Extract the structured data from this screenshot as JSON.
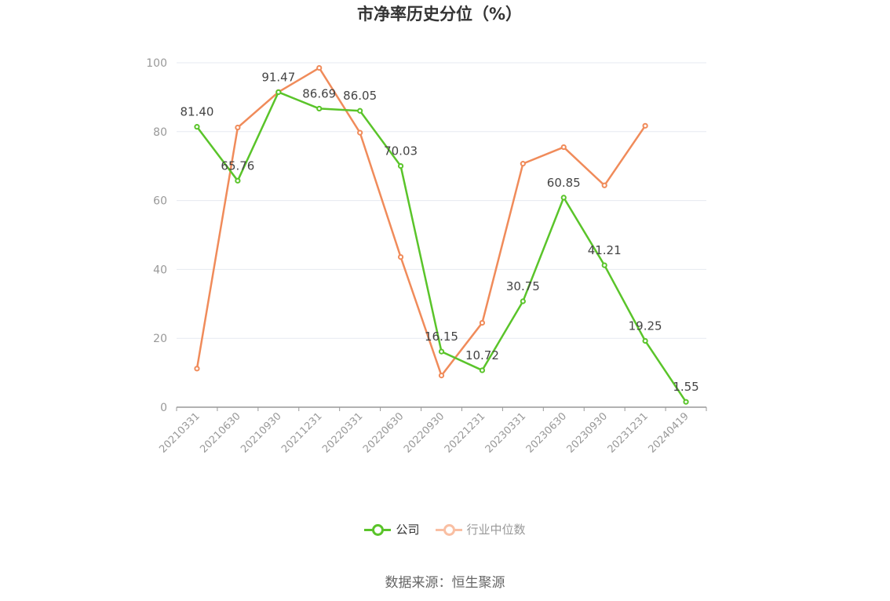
{
  "chart_data": {
    "type": "line",
    "title": "市净率历史分位（%）",
    "categories": [
      "20210331",
      "20210630",
      "20210930",
      "20211231",
      "20220331",
      "20220630",
      "20220930",
      "20221231",
      "20230331",
      "20230630",
      "20230930",
      "20231231",
      "20240419"
    ],
    "series": [
      {
        "name": "公司",
        "color": "#5ac42a",
        "show_labels": true,
        "values": [
          81.4,
          65.76,
          91.47,
          86.69,
          86.05,
          70.03,
          16.15,
          10.72,
          30.75,
          60.85,
          41.21,
          19.25,
          1.55
        ]
      },
      {
        "name": "行业中位数",
        "color": "#f08b5a",
        "show_labels": false,
        "values": [
          11.2,
          81.2,
          91.5,
          98.5,
          79.7,
          43.6,
          9.2,
          24.5,
          70.7,
          75.5,
          64.4,
          81.7,
          null
        ]
      }
    ],
    "ylim": [
      0,
      100
    ],
    "yticks": [
      0,
      20,
      40,
      60,
      80,
      100
    ],
    "grid": true,
    "legend_position": "bottom"
  },
  "legend_colors": {
    "active_text": "#333333",
    "inactive_text": "#999999",
    "inactive_line": "#f9bfa3"
  },
  "source": "数据来源：恒生聚源"
}
